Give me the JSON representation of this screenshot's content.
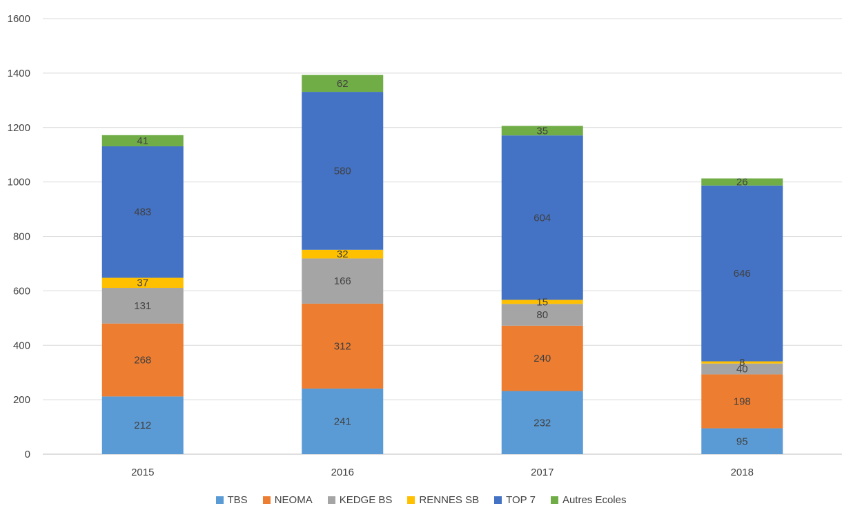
{
  "chart_data": {
    "type": "bar",
    "stacked": true,
    "categories": [
      "2015",
      "2016",
      "2017",
      "2018"
    ],
    "series": [
      {
        "name": "TBS",
        "color": "#5B9BD5",
        "values": [
          212,
          241,
          232,
          95
        ]
      },
      {
        "name": "NEOMA",
        "color": "#ED7D31",
        "values": [
          268,
          312,
          240,
          198
        ]
      },
      {
        "name": "KEDGE BS",
        "color": "#A5A5A5",
        "values": [
          131,
          166,
          80,
          40
        ]
      },
      {
        "name": "RENNES SB",
        "color": "#FFC000",
        "values": [
          37,
          32,
          15,
          8
        ]
      },
      {
        "name": "TOP 7",
        "color": "#4472C4",
        "values": [
          483,
          580,
          604,
          646
        ]
      },
      {
        "name": "Autres Ecoles",
        "color": "#70AD47",
        "values": [
          41,
          62,
          35,
          26
        ]
      }
    ],
    "ylim": [
      0,
      1600
    ],
    "yticks": [
      0,
      200,
      400,
      600,
      800,
      1000,
      1200,
      1400,
      1600
    ],
    "grid": true,
    "legend_position": "bottom",
    "title": "",
    "xlabel": "",
    "ylabel": ""
  }
}
